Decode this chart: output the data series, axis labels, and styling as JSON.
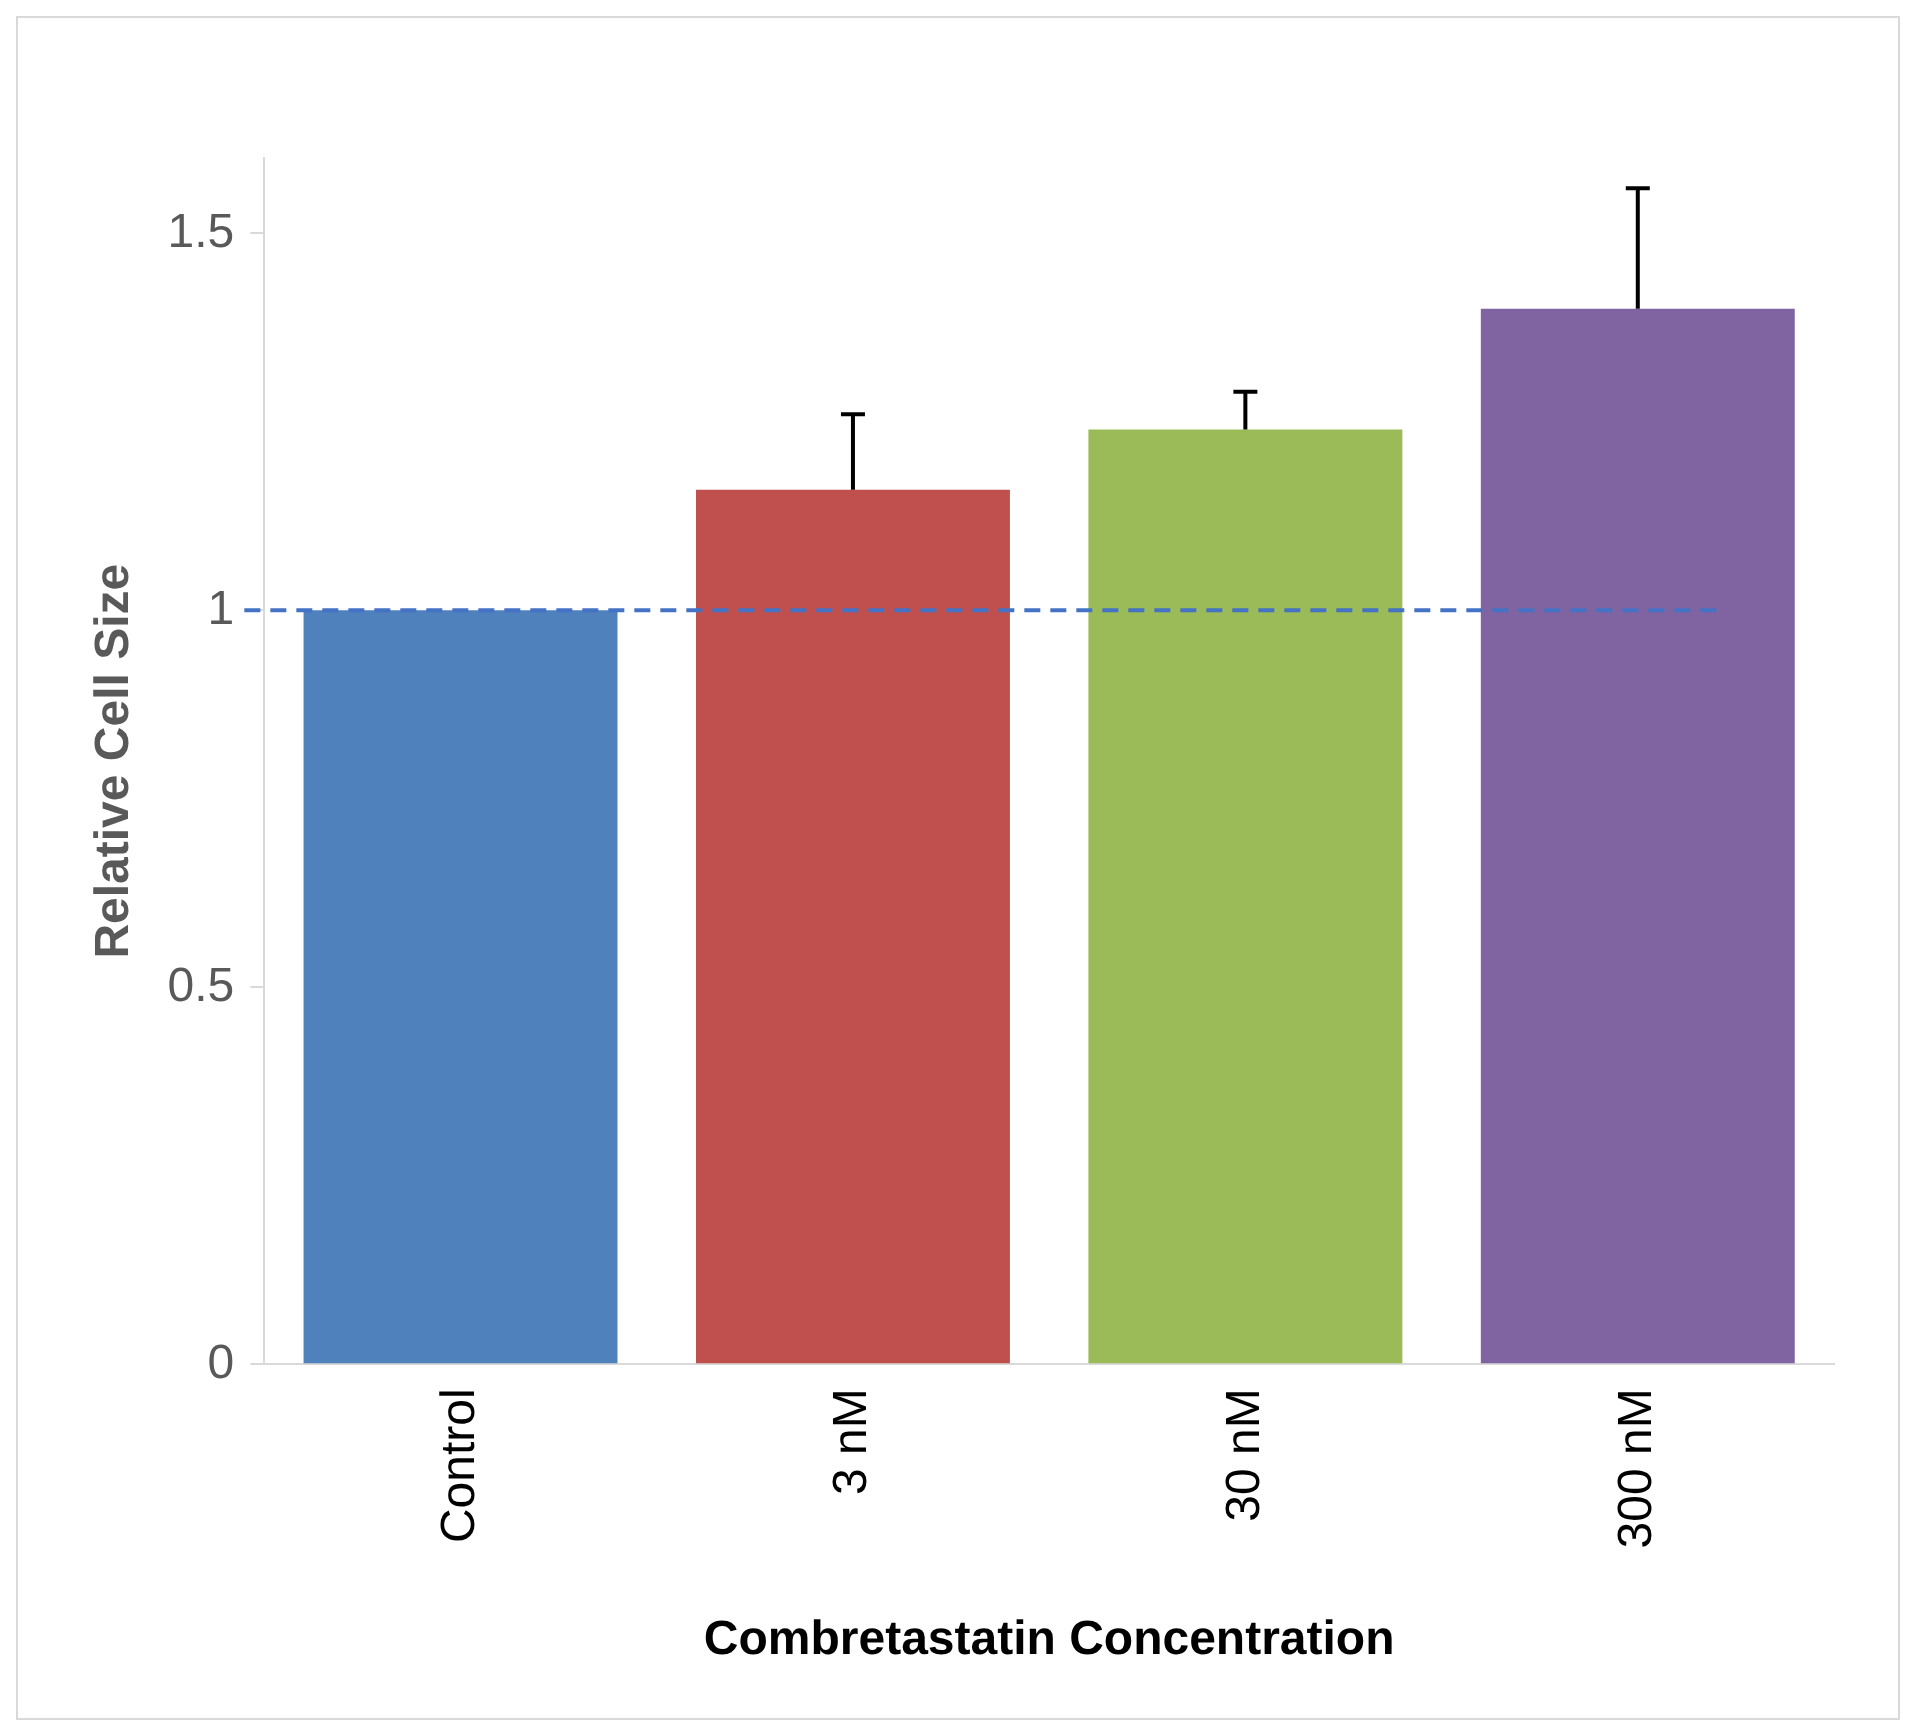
{
  "chart_data": {
    "type": "bar",
    "xlabel": "Combretastatin Concentration",
    "ylabel": "Relative Cell Size",
    "categories": [
      "Control",
      "3 nM",
      "30 nM",
      "300 nM"
    ],
    "values": [
      1.0,
      1.16,
      1.24,
      1.4
    ],
    "colors": [
      "#4f81bd",
      "#c0504d",
      "#9bbb59",
      "#8064a2"
    ],
    "errors": [
      null,
      [
        1.16,
        1.26
      ],
      [
        1.24,
        1.29
      ],
      [
        1.4,
        1.56
      ]
    ],
    "ylim": [
      0,
      1.6
    ],
    "yticks": [
      0,
      0.5,
      1,
      1.5
    ],
    "grid": false,
    "legend": false,
    "ref_lines": [
      {
        "axis": "y",
        "value": 1,
        "color": "#4472c4",
        "line_style": "dashed"
      }
    ]
  }
}
